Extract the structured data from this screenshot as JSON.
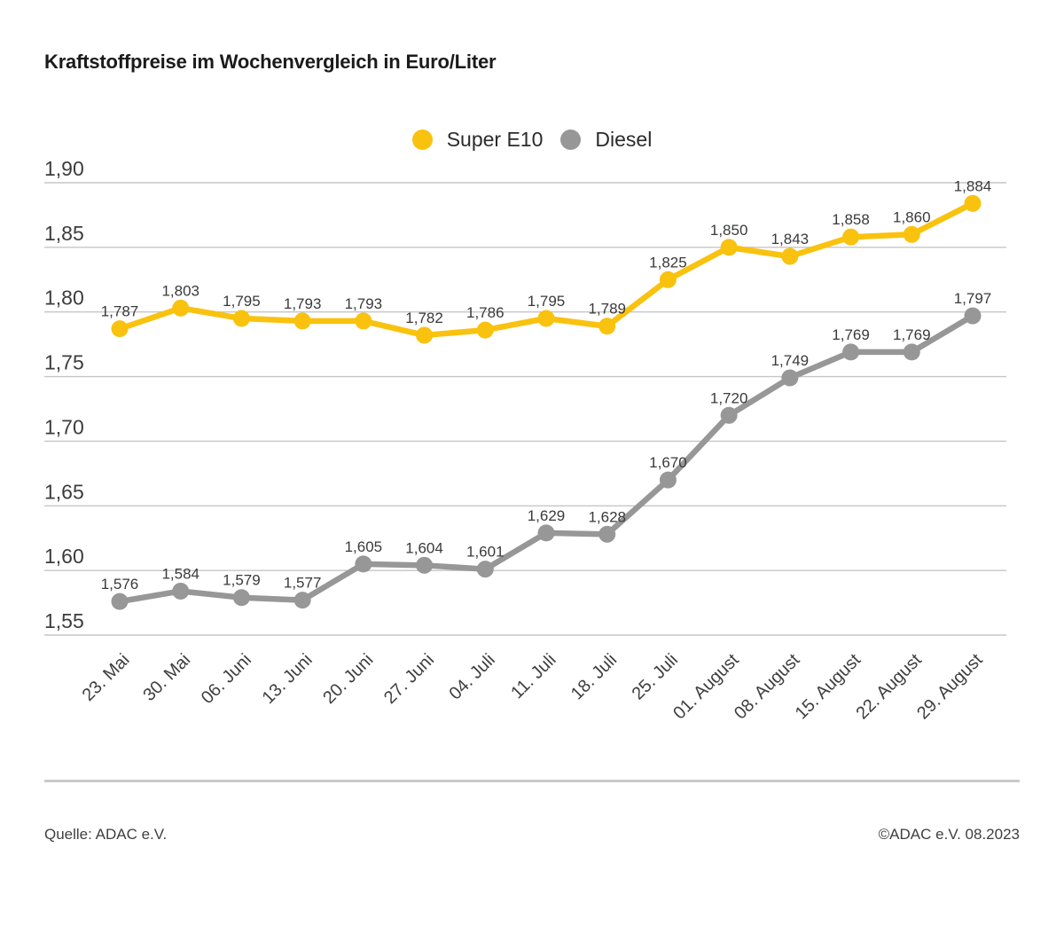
{
  "title": "Kraftstoffpreise im Wochenvergleich in Euro/Liter",
  "legend": {
    "items": [
      {
        "label": "Super E10",
        "color": "#f9c20e"
      },
      {
        "label": "Diesel",
        "color": "#979797"
      }
    ]
  },
  "footer": {
    "source": "Quelle: ADAC e.V.",
    "copyright": "©ADAC e.V. 08.2023"
  },
  "colors": {
    "super_e10": "#f9c20e",
    "diesel": "#979797",
    "gridline": "#c6c6c6",
    "text": "#3c3c3c"
  },
  "chart_data": {
    "type": "line",
    "title": "Kraftstoffpreise im Wochenvergleich in Euro/Liter",
    "xlabel": "",
    "ylabel": "Euro/Liter",
    "ylim": [
      1.55,
      1.9
    ],
    "grid": true,
    "legend_position": "top-center",
    "value_labels": true,
    "yticks": [
      1.55,
      1.6,
      1.65,
      1.7,
      1.75,
      1.8,
      1.85,
      1.9
    ],
    "ytick_labels": [
      "1,55",
      "1,60",
      "1,65",
      "1,70",
      "1,75",
      "1,80",
      "1,85",
      "1,90"
    ],
    "categories": [
      "23. Mai",
      "30. Mai",
      "06. Juni",
      "13. Juni",
      "20. Juni",
      "27. Juni",
      "04. Juli",
      "11. Juli",
      "18. Juli",
      "25. Juli",
      "01. August",
      "08. August",
      "15. August",
      "22. August",
      "29. August"
    ],
    "series": [
      {
        "id": "super-e10",
        "name": "Super E10",
        "color": "#f9c20e",
        "values": [
          1.787,
          1.803,
          1.795,
          1.793,
          1.793,
          1.782,
          1.786,
          1.795,
          1.789,
          1.825,
          1.85,
          1.843,
          1.858,
          1.86,
          1.884
        ],
        "labels": [
          "1,787",
          "1,803",
          "1,795",
          "1,793",
          "1,793",
          "1,782",
          "1,786",
          "1,795",
          "1,789",
          "1,825",
          "1,850",
          "1,843",
          "1,858",
          "1,860",
          "1,884"
        ]
      },
      {
        "id": "diesel",
        "name": "Diesel",
        "color": "#979797",
        "values": [
          1.576,
          1.584,
          1.579,
          1.577,
          1.605,
          1.604,
          1.601,
          1.629,
          1.628,
          1.67,
          1.72,
          1.749,
          1.769,
          1.769,
          1.797
        ],
        "labels": [
          "1,576",
          "1,584",
          "1,579",
          "1,577",
          "1,605",
          "1,604",
          "1,601",
          "1,629",
          "1,628",
          "1,670",
          "1,720",
          "1,749",
          "1,769",
          "1,769",
          "1,797"
        ]
      }
    ]
  }
}
